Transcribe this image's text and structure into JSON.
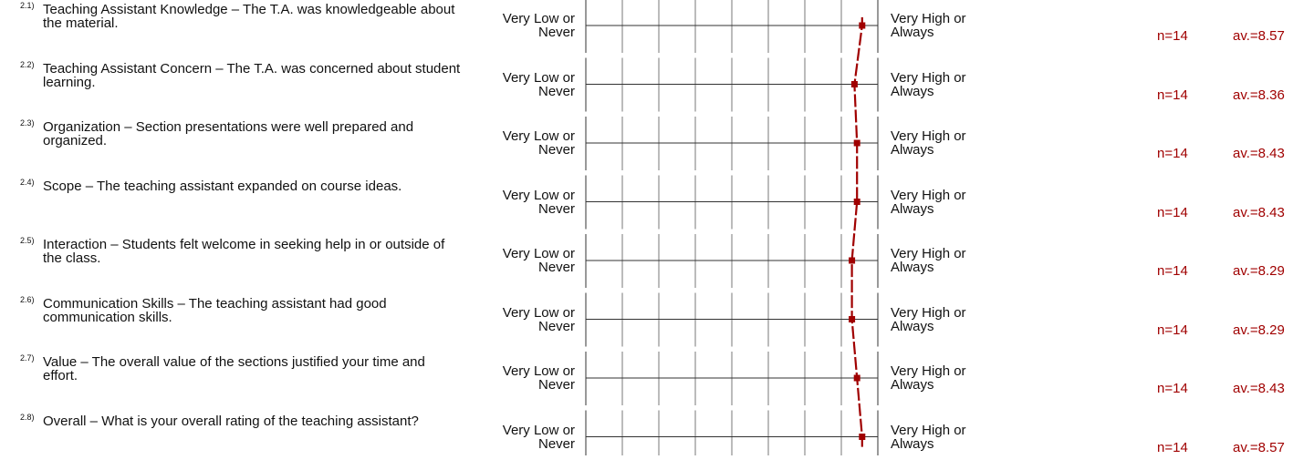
{
  "scale": {
    "min": 1,
    "max": 9,
    "left_label": "Very Low or Never",
    "right_label": "Very High or Always"
  },
  "questions": [
    {
      "num": "2.1)",
      "text": "Teaching Assistant Knowledge – The T.A. was knowledgeable about the material.",
      "n": "n=14",
      "av": "av.=8.57"
    },
    {
      "num": "2.2)",
      "text": "Teaching Assistant Concern – The T.A. was concerned about student learning.",
      "n": "n=14",
      "av": "av.=8.36"
    },
    {
      "num": "2.3)",
      "text": "Organization – Section presentations were well prepared and organized.",
      "n": "n=14",
      "av": "av.=8.43"
    },
    {
      "num": "2.4)",
      "text": "Scope – The teaching assistant expanded on course ideas.",
      "n": "n=14",
      "av": "av.=8.43"
    },
    {
      "num": "2.5)",
      "text": "Interaction – Students felt welcome in seeking help in or outside of the class.",
      "n": "n=14",
      "av": "av.=8.29"
    },
    {
      "num": "2.6)",
      "text": "Communication Skills – The teaching assistant had good communication skills.",
      "n": "n=14",
      "av": "av.=8.29"
    },
    {
      "num": "2.7)",
      "text": "Value – The overall value of the sections justified your time and effort.",
      "n": "n=14",
      "av": "av.=8.43"
    },
    {
      "num": "2.8)",
      "text": "Overall – What is your overall rating of the teaching assistant?",
      "n": "n=14",
      "av": "av.=8.57"
    }
  ],
  "chart_data": {
    "type": "line",
    "orientation": "vertical profile line",
    "categories": [
      "2.1)",
      "2.2)",
      "2.3)",
      "2.4)",
      "2.5)",
      "2.6)",
      "2.7)",
      "2.8)"
    ],
    "values": [
      8.57,
      8.36,
      8.43,
      8.43,
      8.29,
      8.29,
      8.43,
      8.57
    ],
    "xlim": [
      1,
      9
    ],
    "line_color": "#a00000",
    "line_style": "dashed",
    "marker": "square",
    "grid_color": "#333333"
  }
}
